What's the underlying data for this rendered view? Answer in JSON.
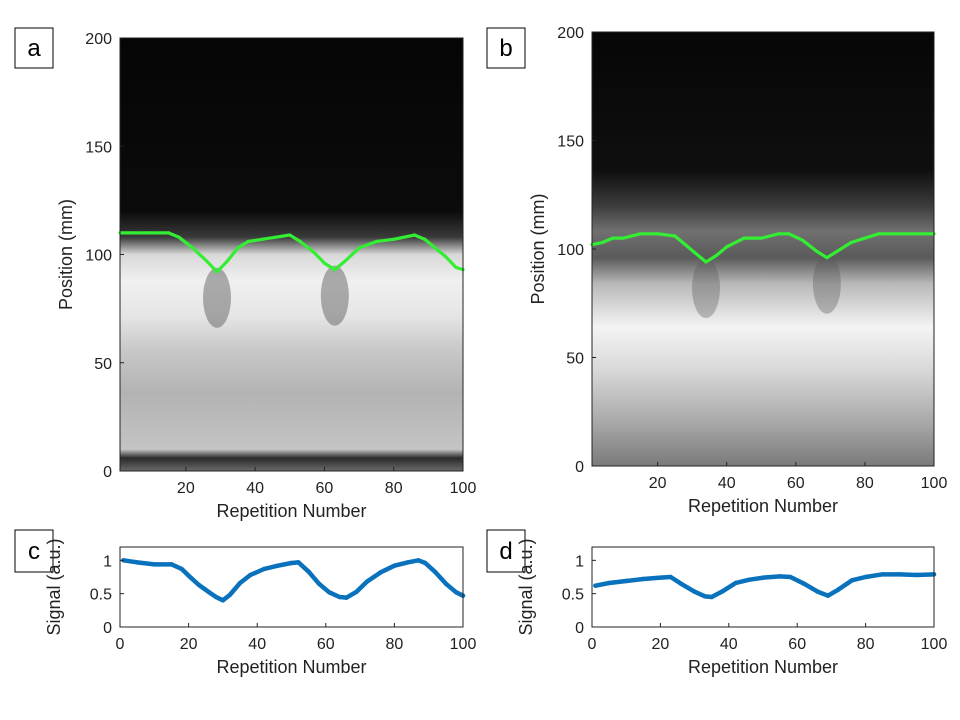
{
  "colors": {
    "trace_green": "#33ee33",
    "signal_blue": "#0a72bd",
    "axis": "#222222"
  },
  "chart_data": [
    {
      "panel": "a",
      "type": "heatmap",
      "xlabel": "Repetition Number",
      "ylabel": "Position (mm)",
      "xlim": [
        1,
        100
      ],
      "ylim": [
        0,
        200
      ],
      "xticks": [
        20,
        40,
        60,
        80,
        100
      ],
      "yticks": [
        0,
        50,
        100,
        150,
        200
      ],
      "colormap": "gray",
      "boundary_series": {
        "name": "detected boundary",
        "color": "#33ee33",
        "x": [
          1,
          5,
          10,
          15,
          18,
          22,
          26,
          29,
          32,
          35,
          38,
          42,
          46,
          50,
          53,
          57,
          60,
          63,
          66,
          70,
          75,
          80,
          86,
          89,
          92,
          95,
          98,
          100
        ],
        "y": [
          110,
          110,
          110,
          110,
          108,
          103,
          97,
          92,
          97,
          103,
          106,
          107,
          108,
          109,
          106,
          101,
          96,
          93,
          97,
          103,
          106,
          107,
          109,
          107,
          103,
          99,
          94,
          93
        ]
      }
    },
    {
      "panel": "b",
      "type": "heatmap",
      "xlabel": "Repetition Number",
      "ylabel": "Position (mm)",
      "xlim": [
        1,
        100
      ],
      "ylim": [
        0,
        200
      ],
      "xticks": [
        20,
        40,
        60,
        80,
        100
      ],
      "yticks": [
        0,
        50,
        100,
        150,
        200
      ],
      "colormap": "gray",
      "boundary_series": {
        "name": "detected boundary",
        "color": "#33ee33",
        "x": [
          1,
          4,
          7,
          10,
          15,
          20,
          25,
          28,
          31,
          34,
          37,
          40,
          45,
          50,
          55,
          58,
          62,
          66,
          69,
          72,
          76,
          80,
          84,
          90,
          95,
          100
        ],
        "y": [
          102,
          103,
          105,
          105,
          107,
          107,
          106,
          102,
          98,
          94,
          97,
          101,
          105,
          105,
          107,
          107,
          104,
          99,
          96,
          99,
          103,
          105,
          107,
          107,
          107,
          107
        ]
      }
    },
    {
      "panel": "c",
      "type": "line",
      "xlabel": "Repetition Number",
      "ylabel": "Signal (a.u.)",
      "xlim": [
        0,
        100
      ],
      "ylim": [
        0,
        1.2
      ],
      "xticks": [
        0,
        20,
        40,
        60,
        80,
        100
      ],
      "yticks": [
        0,
        0.5,
        1
      ],
      "ytick_labels": [
        "0",
        "0.5",
        "1"
      ],
      "series": [
        {
          "name": "signal",
          "color": "#0a72bd",
          "x": [
            1,
            5,
            10,
            15,
            18,
            20,
            23,
            26,
            28,
            30,
            32,
            35,
            38,
            42,
            46,
            50,
            52,
            55,
            58,
            61,
            64,
            66,
            69,
            72,
            76,
            80,
            84,
            87,
            89,
            92,
            95,
            98,
            100
          ],
          "y": [
            1.0,
            0.97,
            0.94,
            0.94,
            0.87,
            0.77,
            0.63,
            0.52,
            0.45,
            0.4,
            0.48,
            0.66,
            0.78,
            0.87,
            0.92,
            0.96,
            0.97,
            0.83,
            0.65,
            0.52,
            0.45,
            0.44,
            0.53,
            0.68,
            0.82,
            0.92,
            0.97,
            1.0,
            0.96,
            0.82,
            0.65,
            0.52,
            0.47
          ]
        }
      ]
    },
    {
      "panel": "d",
      "type": "line",
      "xlabel": "Repetition Number",
      "ylabel": "Signal (a.u.)",
      "xlim": [
        0,
        100
      ],
      "ylim": [
        0,
        1.2
      ],
      "xticks": [
        0,
        20,
        40,
        60,
        80,
        100
      ],
      "yticks": [
        0,
        0.5,
        1
      ],
      "ytick_labels": [
        "0",
        "0.5",
        "1"
      ],
      "series": [
        {
          "name": "signal",
          "color": "#0a72bd",
          "x": [
            1,
            5,
            10,
            15,
            20,
            23,
            26,
            30,
            33,
            35,
            38,
            42,
            46,
            50,
            55,
            58,
            62,
            66,
            69,
            72,
            76,
            80,
            85,
            90,
            95,
            100
          ],
          "y": [
            0.62,
            0.66,
            0.69,
            0.72,
            0.74,
            0.75,
            0.65,
            0.53,
            0.46,
            0.45,
            0.53,
            0.66,
            0.71,
            0.74,
            0.76,
            0.75,
            0.65,
            0.53,
            0.47,
            0.56,
            0.7,
            0.75,
            0.79,
            0.79,
            0.78,
            0.79
          ]
        }
      ]
    }
  ]
}
